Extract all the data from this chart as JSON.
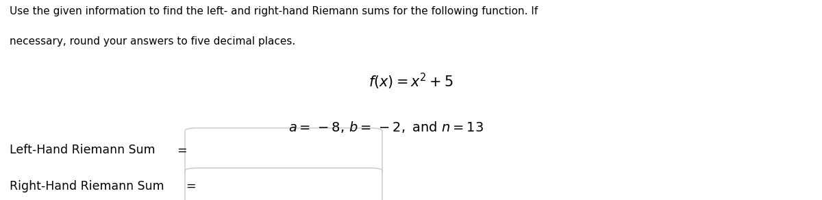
{
  "background_color": "#ffffff",
  "instruction_line1": "Use the given information to find the left- and right-hand Riemann sums for the following function. If",
  "instruction_line2": "necessary, round your answers to five decimal places.",
  "function_text": "$f(x) = x^2 + 5$",
  "params_text": "$a = \\, -8, \\, b = \\, -2, \\text{ and } n = 13$",
  "left_label": "Left-Hand Riemann Sum",
  "right_label": "Right-Hand Riemann Sum",
  "text_color": "#000000",
  "font_size_instruction": 11.0,
  "font_size_math": 15,
  "font_size_params": 14,
  "font_size_label": 12.5,
  "box_color": "#c8c8c8",
  "box_face": "#ffffff"
}
